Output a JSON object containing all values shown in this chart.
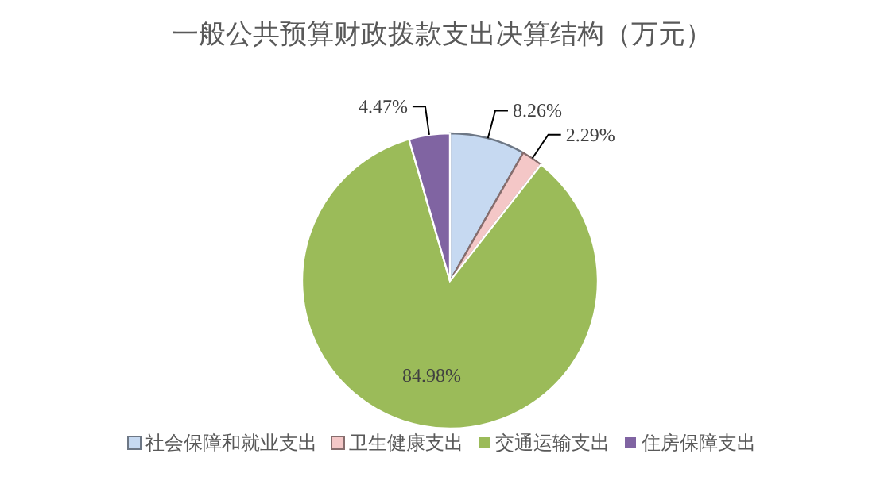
{
  "chart_data": {
    "type": "pie",
    "title": "一般公共预算财政拨款支出决算结构（万元）",
    "categories": [
      "社会保障和就业支出",
      "卫生健康支出",
      "交通运输支出",
      "住房保障支出"
    ],
    "values": [
      8.26,
      2.29,
      84.98,
      4.47
    ],
    "colors": [
      "#c6d9f1",
      "#f4c7c7",
      "#9bbb59",
      "#8064a2"
    ],
    "value_labels": [
      "8.26%",
      "2.29%",
      "84.98%",
      "4.47%"
    ],
    "legend": "bottom"
  }
}
